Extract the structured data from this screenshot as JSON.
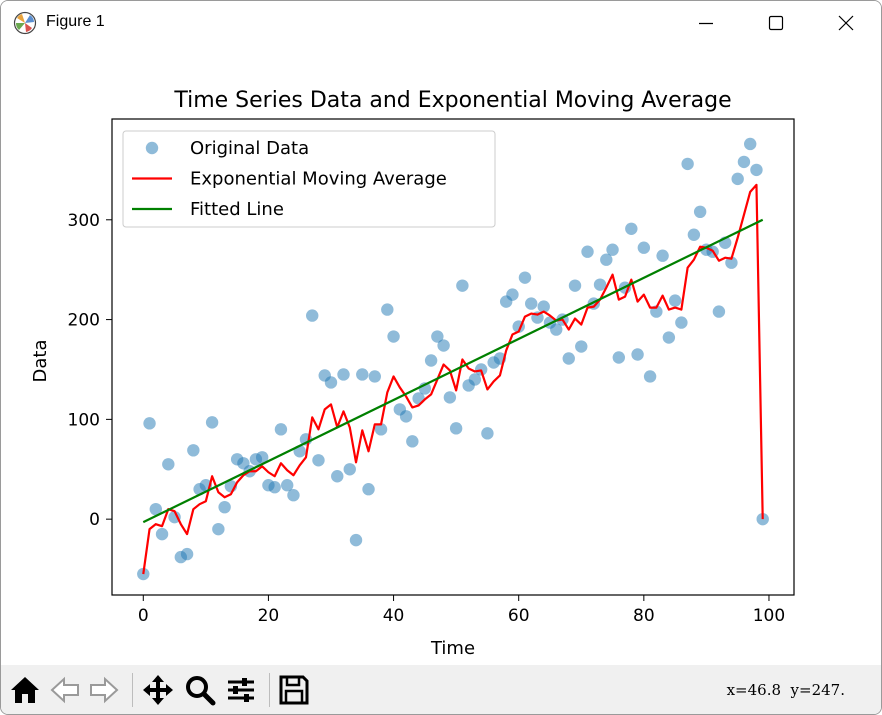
{
  "window": {
    "title": "Figure 1"
  },
  "toolbar": {
    "coordinates": "x=46.8  y=247.",
    "tools": [
      "home-icon",
      "back-icon",
      "forward-icon",
      "pan-icon",
      "zoom-icon",
      "configure-subplots-icon",
      "save-icon"
    ]
  },
  "chart_data": {
    "type": "scatter",
    "title": "Time Series Data and Exponential Moving Average",
    "xlabel": "Time",
    "ylabel": "Data",
    "xlim": [
      -5,
      104
    ],
    "ylim": [
      -76,
      401
    ],
    "xticks": [
      0,
      20,
      40,
      60,
      80,
      100
    ],
    "yticks": [
      0,
      100,
      200,
      300
    ],
    "grid": false,
    "legend_position": "top-left",
    "colors": {
      "scatter": "#1f77b4",
      "ema": "#ff0000",
      "fit": "#008000"
    },
    "scatter": {
      "name": "Original Data",
      "x": [
        0,
        1,
        2,
        3,
        4,
        5,
        6,
        7,
        8,
        9,
        10,
        11,
        12,
        13,
        14,
        15,
        16,
        17,
        18,
        19,
        20,
        21,
        22,
        23,
        24,
        25,
        26,
        27,
        28,
        29,
        30,
        31,
        32,
        33,
        34,
        35,
        36,
        37,
        38,
        39,
        40,
        41,
        42,
        43,
        44,
        45,
        46,
        47,
        48,
        49,
        50,
        51,
        52,
        53,
        54,
        55,
        56,
        57,
        58,
        59,
        60,
        61,
        62,
        63,
        64,
        65,
        66,
        67,
        68,
        69,
        70,
        71,
        72,
        73,
        74,
        75,
        76,
        77,
        78,
        79,
        80,
        81,
        82,
        83,
        84,
        85,
        86,
        87,
        88,
        89,
        90,
        91,
        92,
        93,
        94,
        95,
        96,
        97,
        98,
        99
      ],
      "y": [
        -55,
        96,
        10,
        -15,
        55,
        2,
        -38,
        -35,
        69,
        30,
        34,
        97,
        -10,
        12,
        33,
        60,
        56,
        48,
        60,
        62,
        34,
        32,
        90,
        34,
        24,
        68,
        80,
        204,
        59,
        144,
        137,
        43,
        145,
        50,
        -21,
        145,
        30,
        143,
        90,
        210,
        183,
        110,
        103,
        78,
        121,
        131,
        159,
        183,
        174,
        122,
        91,
        234,
        134,
        140,
        150,
        86,
        157,
        161,
        218,
        225,
        193,
        242,
        216,
        202,
        213,
        197,
        190,
        200,
        161,
        234,
        173,
        268,
        216,
        235,
        260,
        270,
        162,
        232,
        291,
        165,
        272,
        143,
        208,
        264,
        182,
        219,
        197,
        356,
        285,
        308,
        270,
        268,
        208,
        277,
        257,
        341,
        358,
        376,
        350,
        0
      ]
    },
    "series": [
      {
        "name": "Exponential Moving Average",
        "x": [
          0,
          1,
          2,
          3,
          4,
          5,
          6,
          7,
          8,
          9,
          10,
          11,
          12,
          13,
          14,
          15,
          16,
          17,
          18,
          19,
          20,
          21,
          22,
          23,
          24,
          25,
          26,
          27,
          28,
          29,
          30,
          31,
          32,
          33,
          34,
          35,
          36,
          37,
          38,
          39,
          40,
          41,
          42,
          43,
          44,
          45,
          46,
          47,
          48,
          49,
          50,
          51,
          52,
          53,
          54,
          55,
          56,
          57,
          58,
          59,
          60,
          61,
          62,
          63,
          64,
          65,
          66,
          67,
          68,
          69,
          70,
          71,
          72,
          73,
          74,
          75,
          76,
          77,
          78,
          79,
          80,
          81,
          82,
          83,
          84,
          85,
          86,
          87,
          88,
          89,
          90,
          91,
          92,
          93,
          94,
          95,
          96,
          97,
          98,
          99
        ],
        "y": [
          -55,
          -10,
          -5,
          -7,
          10,
          8,
          -5,
          -15,
          10,
          15,
          18,
          43,
          27,
          22,
          25,
          37,
          44,
          48,
          48,
          53,
          47,
          43,
          56,
          49,
          44,
          54,
          62,
          102,
          90,
          110,
          115,
          92,
          108,
          92,
          57,
          89,
          68,
          95,
          95,
          127,
          143,
          132,
          123,
          112,
          114,
          120,
          125,
          140,
          155,
          149,
          129,
          160,
          151,
          148,
          149,
          130,
          138,
          144,
          169,
          185,
          188,
          203,
          206,
          205,
          208,
          204,
          199,
          200,
          190,
          201,
          195,
          212,
          213,
          220,
          232,
          245,
          220,
          223,
          240,
          218,
          225,
          212,
          212,
          224,
          210,
          212,
          210,
          252,
          260,
          273,
          272,
          269,
          259,
          262,
          261,
          282,
          305,
          328,
          335,
          0
        ]
      },
      {
        "name": "Fitted Line",
        "x": [
          0,
          99
        ],
        "y": [
          -3,
          300
        ]
      }
    ]
  }
}
